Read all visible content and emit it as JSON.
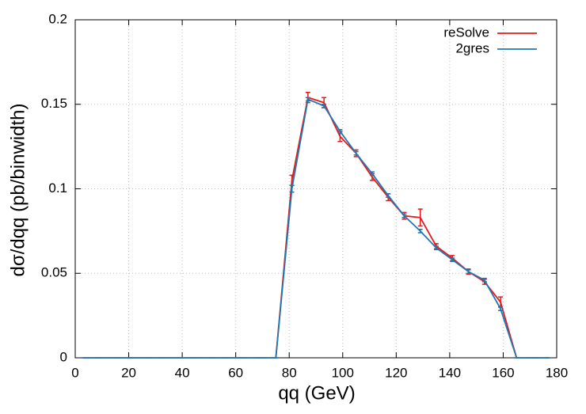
{
  "chart_data": {
    "type": "line",
    "xlabel": "qq (GeV)",
    "ylabel": "dσ/dqq (pb/binwidth)",
    "x": [
      3,
      9,
      15,
      21,
      27,
      33,
      39,
      45,
      51,
      57,
      63,
      69,
      75,
      81,
      87,
      93,
      99,
      105,
      111,
      117,
      123,
      129,
      135,
      141,
      147,
      153,
      159,
      165,
      171,
      177
    ],
    "series": [
      {
        "name": "reSolve",
        "color": "#e41a1c",
        "values": [
          0,
          0,
          0,
          0,
          0,
          0,
          0,
          0,
          0,
          0,
          0,
          0,
          0,
          0.105,
          0.154,
          0.151,
          0.131,
          0.121,
          0.107,
          0.095,
          0.084,
          0.083,
          0.066,
          0.059,
          0.051,
          0.045,
          0.033,
          0,
          0,
          0
        ],
        "errors": [
          0,
          0,
          0,
          0,
          0,
          0,
          0,
          0,
          0,
          0,
          0,
          0,
          0,
          0.003,
          0.003,
          0.003,
          0.003,
          0.002,
          0.002,
          0.002,
          0.002,
          0.005,
          0.0015,
          0.0015,
          0.0015,
          0.0015,
          0.003,
          0,
          0,
          0
        ]
      },
      {
        "name": "2gres",
        "color": "#1f78b4",
        "values": [
          0,
          0,
          0,
          0,
          0,
          0,
          0,
          0,
          0,
          0,
          0,
          0,
          0,
          0.1,
          0.153,
          0.149,
          0.134,
          0.121,
          0.109,
          0.096,
          0.084,
          0.075,
          0.065,
          0.058,
          0.051,
          0.046,
          0.029,
          0,
          0,
          0
        ],
        "errors": [
          0,
          0,
          0,
          0,
          0,
          0,
          0,
          0,
          0,
          0,
          0,
          0,
          0,
          0.002,
          0.001,
          0.001,
          0.001,
          0.001,
          0.001,
          0.001,
          0.001,
          0.001,
          0.001,
          0.001,
          0.001,
          0.001,
          0.001,
          0,
          0,
          0
        ]
      }
    ],
    "xlim": [
      0,
      180
    ],
    "xticks": [
      0,
      20,
      40,
      60,
      80,
      100,
      120,
      140,
      160,
      180
    ],
    "ylim": [
      0,
      0.2
    ],
    "yticks": [
      0,
      0.05,
      0.1,
      0.15,
      0.2
    ],
    "grid": true,
    "legend": "top-right"
  }
}
